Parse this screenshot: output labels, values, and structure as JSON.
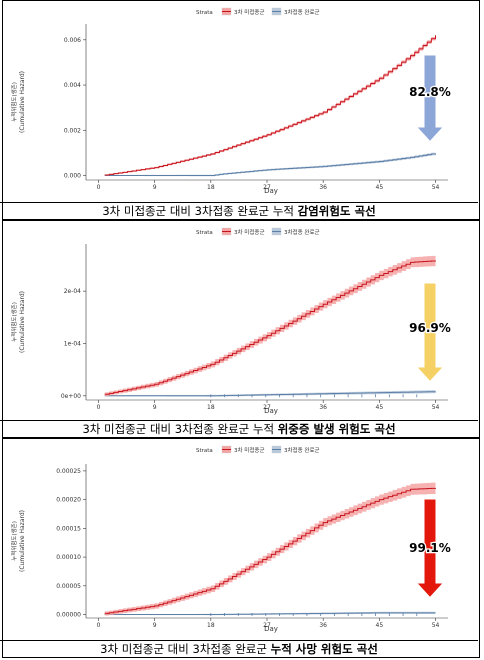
{
  "strata_label": "Strata",
  "legend_unvax": "3차 미접종군",
  "legend_vax": "3차접종 완료군",
  "y_title_ko": "누적위험도(생존)",
  "y_title_en": "(Cumulative Hazard)",
  "x_title": "Day",
  "colors": {
    "unvax": "#c8141e",
    "unvax_band": "#f4a3a3",
    "vax": "#5c7fa6",
    "vax_band": "#b9c9dc"
  },
  "charts": [
    {
      "caption_plain": "3차 미접종군 대비 3차접종 완료군 누적 ",
      "caption_bold": "감염위험도 곡선",
      "pct_label": "82.8%",
      "arrow_color": "#8da6d8",
      "chart_data": {
        "type": "line",
        "x_ticks": [
          0,
          9,
          18,
          27,
          36,
          45,
          54
        ],
        "y_ticks": [
          "0.000",
          "0.002",
          "0.004",
          "0.006"
        ],
        "y_tick_values": [
          0,
          0.002,
          0.004,
          0.006
        ],
        "ylim": [
          -0.0002,
          0.0067
        ],
        "xlim": [
          -2,
          56
        ],
        "series": [
          {
            "name": "3차 미접종군",
            "band": 8e-05,
            "x": [
              1,
              9,
              18,
              27,
              36,
              45,
              50,
              54
            ],
            "y": [
              2e-05,
              0.00035,
              0.00095,
              0.0018,
              0.0028,
              0.0043,
              0.0053,
              0.0062
            ]
          },
          {
            "name": "3차접종 완료군",
            "band": 6e-05,
            "x": [
              18,
              20,
              27,
              36,
              45,
              50,
              54
            ],
            "y": [
              0.0,
              7e-05,
              0.00025,
              0.0004,
              0.00062,
              0.0008,
              0.00098
            ]
          }
        ]
      }
    },
    {
      "caption_plain": "3차 미접종군 대비 3차접종 완료군 누적 ",
      "caption_bold": "위중증 발생 위험도 곡선",
      "pct_label": "96.9%",
      "arrow_color": "#f5d064",
      "chart_data": {
        "type": "line",
        "x_ticks": [
          0,
          9,
          18,
          27,
          36,
          45,
          54
        ],
        "y_ticks": [
          "0e+00",
          "1e-04",
          "2e-04"
        ],
        "y_tick_values": [
          0,
          0.0001,
          0.0002
        ],
        "ylim": [
          -8e-06,
          0.00029
        ],
        "xlim": [
          -2,
          56
        ],
        "series": [
          {
            "name": "3차 미접종군",
            "band": 1e-05,
            "x": [
              1,
              9,
              18,
              27,
              36,
              45,
              50,
              54
            ],
            "y": [
              3e-06,
              2.2e-05,
              6e-05,
              0.000115,
              0.000175,
              0.00023,
              0.000255,
              0.000258
            ]
          },
          {
            "name": "3차접종 완료군",
            "band": 3e-06,
            "x": [
              18,
              27,
              36,
              45,
              54
            ],
            "y": [
              0.0,
              2e-06,
              4e-06,
              6e-06,
              8e-06
            ]
          }
        ]
      }
    },
    {
      "caption_plain": "3차 미접종군 대비 3차접종 완료군 ",
      "caption_bold": "누적 사망 위험도 곡선",
      "pct_label": "99.1%",
      "arrow_color": "#e3170b",
      "chart_data": {
        "type": "line",
        "x_ticks": [
          0,
          9,
          18,
          27,
          36,
          45,
          54
        ],
        "y_ticks": [
          "0.00000",
          "0.00005",
          "0.00010",
          "0.00015",
          "0.00020",
          "0.00025"
        ],
        "y_tick_values": [
          0,
          5e-05,
          0.0001,
          0.00015,
          0.0002,
          0.00025
        ],
        "ylim": [
          -6e-06,
          0.000262
        ],
        "xlim": [
          -2,
          56
        ],
        "series": [
          {
            "name": "3차 미접종군",
            "band": 1e-05,
            "x": [
              1,
              9,
              18,
              27,
              36,
              45,
              50,
              54
            ],
            "y": [
              2e-06,
              1.5e-05,
              4.5e-05,
              0.0001,
              0.00016,
              0.0002,
              0.000218,
              0.00022
            ]
          },
          {
            "name": "3차접종 완료군",
            "band": 2e-06,
            "x": [
              18,
              27,
              36,
              45,
              54
            ],
            "y": [
              0.0,
              1e-06,
              2e-06,
              3e-06,
              3e-06
            ]
          }
        ]
      }
    }
  ]
}
